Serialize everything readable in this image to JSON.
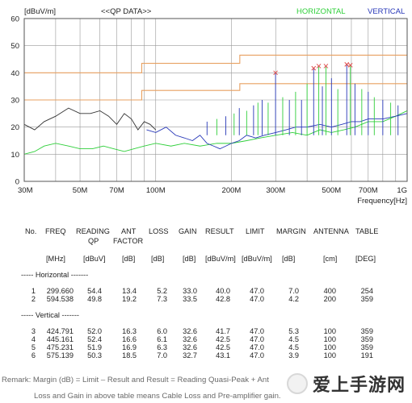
{
  "chart_data": {
    "type": "line",
    "ylabel": "[dBuV/m]",
    "title": "<<QP DATA>>",
    "xlabel": "Frequency[Hz]",
    "x_scale": "log",
    "xlim": [
      30,
      1000
    ],
    "ylim": [
      0,
      60
    ],
    "grid": true,
    "legend_position": "top-right",
    "x_ticks": [
      30,
      50,
      70,
      100,
      200,
      300,
      500,
      700,
      1000
    ],
    "x_tick_labels": [
      "30M",
      "50M",
      "70M",
      "100M",
      "200M",
      "300M",
      "500M",
      "700M",
      "1G"
    ],
    "y_ticks": [
      0,
      10,
      20,
      30,
      40,
      50,
      60
    ],
    "y_tick_labels": [
      "0",
      "10",
      "20",
      "30",
      "40",
      "50",
      "60"
    ],
    "limit_lines": [
      {
        "x": [
          30,
          88,
          88,
          216,
          216,
          1000
        ],
        "y": [
          30,
          30,
          33.5,
          33.5,
          36,
          36
        ],
        "color": "#e8a060"
      },
      {
        "x": [
          30,
          88,
          88,
          216,
          216,
          1000
        ],
        "y": [
          40,
          40,
          43.5,
          43.5,
          46.5,
          46.5
        ],
        "color": "#e8a060"
      }
    ],
    "series": [
      {
        "name": "HORIZONTAL",
        "color": "#2fcf3a",
        "x": [
          30,
          33,
          36,
          40,
          45,
          50,
          56,
          62,
          68,
          75,
          82,
          90,
          100,
          115,
          130,
          150,
          175,
          200,
          230,
          260,
          300,
          350,
          400,
          450,
          500,
          560,
          620,
          700,
          800,
          900,
          1000
        ],
        "y": [
          10,
          11,
          13,
          14,
          13,
          12,
          12,
          13,
          12,
          11,
          12,
          13,
          14,
          13,
          14,
          13,
          14,
          14,
          15,
          16,
          17,
          18,
          17,
          19,
          18,
          19,
          20,
          22,
          22,
          24,
          26
        ]
      },
      {
        "name": "VERTICAL",
        "color": "#2838b8",
        "x": [
          92,
          100,
          110,
          120,
          130,
          140,
          150,
          160,
          170,
          180,
          190,
          200,
          215,
          230,
          250,
          270,
          300,
          330,
          360,
          400,
          450,
          500,
          550,
          600,
          650,
          700,
          800,
          900,
          1000
        ],
        "y": [
          19,
          18,
          20,
          17,
          16,
          15,
          17,
          14,
          13,
          12,
          13,
          14,
          15,
          17,
          16,
          17,
          18,
          19,
          20,
          20,
          21,
          20,
          21,
          22,
          22,
          23,
          23,
          24,
          25
        ]
      }
    ],
    "black_trace": {
      "color": "#333333",
      "x": [
        30,
        33,
        36,
        40,
        45,
        50,
        55,
        60,
        65,
        70,
        75,
        80,
        85,
        90,
        95,
        100
      ],
      "y": [
        21,
        19,
        22,
        24,
        27,
        25,
        25,
        26,
        24,
        21,
        25,
        23,
        19,
        22,
        21,
        19
      ]
    },
    "peaks": [
      {
        "x": 299.66,
        "y": 40.0,
        "series": "HORIZONTAL"
      },
      {
        "x": 594.538,
        "y": 42.8,
        "series": "HORIZONTAL"
      },
      {
        "x": 424.791,
        "y": 41.7,
        "series": "VERTICAL"
      },
      {
        "x": 445.161,
        "y": 42.5,
        "series": "VERTICAL"
      },
      {
        "x": 475.231,
        "y": 42.5,
        "series": "VERTICAL"
      },
      {
        "x": 575.139,
        "y": 43.1,
        "series": "VERTICAL"
      }
    ],
    "spike_frequencies": [
      160,
      175,
      190,
      205,
      215,
      230,
      245,
      255,
      265,
      280,
      299.66,
      320,
      340,
      360,
      380,
      400,
      424.791,
      445.161,
      460,
      475.231,
      500,
      530,
      575.139,
      594.538,
      620,
      660,
      700,
      740,
      800,
      860,
      920
    ],
    "spike_heights": [
      22,
      23,
      24,
      25,
      27,
      26,
      28,
      29,
      30,
      29,
      40,
      31,
      30,
      33,
      30,
      36,
      41.7,
      42.5,
      35,
      42.5,
      38,
      34,
      43.1,
      42.8,
      36,
      34,
      33,
      31,
      30,
      29,
      28
    ]
  },
  "table": {
    "headers_row1": {
      "no": "No.",
      "freq": "FREQ",
      "reading": "READING",
      "ant": "ANT",
      "loss": "LOSS",
      "gain": "GAIN",
      "result": "RESULT",
      "limit": "LIMIT",
      "margin": "MARGIN",
      "antenna": "ANTENNA",
      "table": "TABLE"
    },
    "headers_row2": {
      "reading": "QP",
      "ant": "FACTOR"
    },
    "units": {
      "freq": "[MHz]",
      "reading": "[dBuV]",
      "ant": "[dB]",
      "loss": "[dB]",
      "gain": "[dB]",
      "result": "[dBuV/m]",
      "limit": "[dBuV/m]",
      "margin": "[dB]",
      "antenna": "[cm]",
      "table": "[DEG]"
    },
    "horizontal_title": "----- Horizontal -------",
    "vertical_title": "----- Vertical -------",
    "horizontal_rows": [
      [
        "1",
        "299.660",
        "54.4",
        "13.4",
        "5.2",
        "33.0",
        "40.0",
        "47.0",
        "7.0",
        "400",
        "254"
      ],
      [
        "2",
        "594.538",
        "49.8",
        "19.2",
        "7.3",
        "33.5",
        "42.8",
        "47.0",
        "4.2",
        "200",
        "359"
      ]
    ],
    "vertical_rows": [
      [
        "3",
        "424.791",
        "52.0",
        "16.3",
        "6.0",
        "32.6",
        "41.7",
        "47.0",
        "5.3",
        "100",
        "359"
      ],
      [
        "4",
        "445.161",
        "52.4",
        "16.6",
        "6.1",
        "32.6",
        "42.5",
        "47.0",
        "4.5",
        "100",
        "359"
      ],
      [
        "5",
        "475.231",
        "51.9",
        "16.9",
        "6.3",
        "32.6",
        "42.5",
        "47.0",
        "4.5",
        "100",
        "359"
      ],
      [
        "6",
        "575.139",
        "50.3",
        "18.5",
        "7.0",
        "32.7",
        "43.1",
        "47.0",
        "3.9",
        "100",
        "191"
      ]
    ]
  },
  "remark": {
    "line1": "Remark: Margin (dB) = Limit –   Result and Result = Reading Quasi-Peak + Ant",
    "line2": "Loss and Gain in above table means Cable Loss and Pre-amplifier gain."
  },
  "watermark": {
    "text": "爱上手游网"
  }
}
